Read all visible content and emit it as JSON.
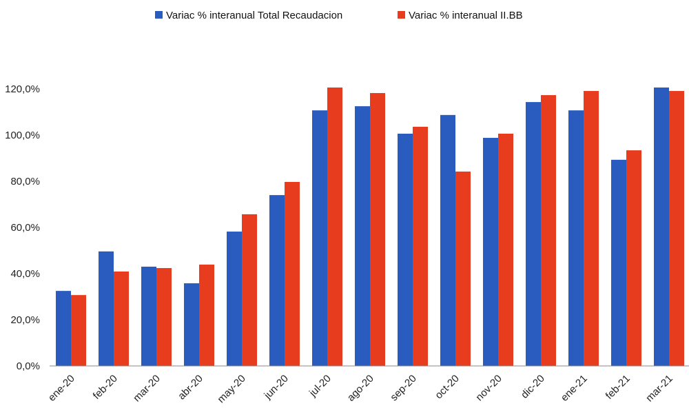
{
  "chart_data": {
    "type": "bar",
    "title": "",
    "xlabel": "",
    "ylabel": "",
    "ylim": [
      0,
      120
    ],
    "yticks": [
      "0,0%",
      "20,0%",
      "40,0%",
      "60,0%",
      "80,0%",
      "100,0%",
      "120,0%"
    ],
    "ytick_values": [
      0,
      20,
      40,
      60,
      80,
      100,
      120
    ],
    "grid": false,
    "legend_position": "top-center",
    "categories": [
      "ene-20",
      "feb-20",
      "mar-20",
      "abr-20",
      "may-20",
      "jun-20",
      "jul-20",
      "ago-20",
      "sep-20",
      "oct-20",
      "nov-20",
      "dic-20",
      "ene-21",
      "feb-21",
      "mar-21"
    ],
    "series": [
      {
        "name": "Variac % interanual Total Recaudacion",
        "color": "#2a5cbf",
        "values": [
          32.5,
          49.6,
          43.0,
          35.8,
          58.2,
          74.0,
          110.7,
          112.5,
          100.6,
          108.7,
          98.8,
          114.3,
          110.7,
          89.3,
          120.6
        ]
      },
      {
        "name": "Variac % interanual II.BB",
        "color": "#e83c1e",
        "values": [
          30.7,
          40.9,
          42.4,
          43.9,
          65.7,
          79.7,
          120.6,
          118.2,
          103.6,
          84.2,
          100.6,
          117.3,
          119.1,
          93.4,
          119.1
        ]
      }
    ]
  }
}
